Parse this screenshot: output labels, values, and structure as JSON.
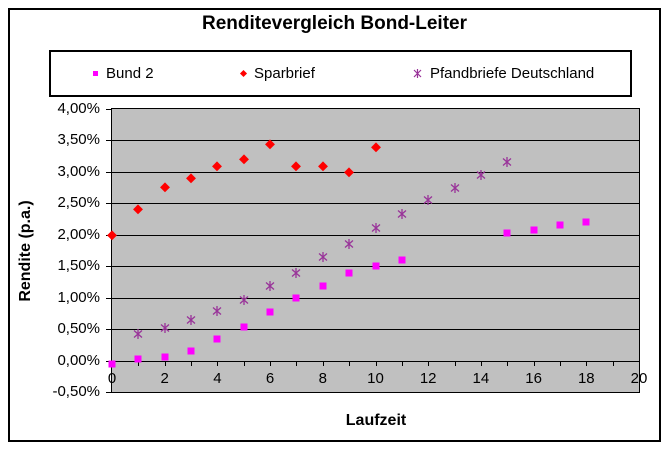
{
  "chart": {
    "title": "Renditevergleich Bond-Leiter",
    "x_axis_title": "Laufzeit",
    "y_axis_title": "Rendite (p.a.)",
    "plot_background": "#C0C0C0",
    "gridline_color": "#000000",
    "legend_position": "top"
  },
  "chart_data": {
    "type": "scatter",
    "title": "Renditevergleich Bond-Leiter",
    "xlabel": "Laufzeit",
    "ylabel": "Rendite (p.a.)",
    "xlim": [
      0,
      20
    ],
    "ylim": [
      -0.5,
      4.0
    ],
    "grid": true,
    "y_ticks": [
      {
        "label": "4,00%",
        "value": 4.0
      },
      {
        "label": "3,50%",
        "value": 3.5
      },
      {
        "label": "3,00%",
        "value": 3.0
      },
      {
        "label": "2,50%",
        "value": 2.5
      },
      {
        "label": "2,00%",
        "value": 2.0
      },
      {
        "label": "1,50%",
        "value": 1.5
      },
      {
        "label": "1,00%",
        "value": 1.0
      },
      {
        "label": "0,50%",
        "value": 0.5
      },
      {
        "label": "0,00%",
        "value": 0.0
      },
      {
        "label": "-0,50%",
        "value": -0.5
      }
    ],
    "x_ticks": {
      "minor_step": 1,
      "labels": [
        {
          "label": "0",
          "value": 0
        },
        {
          "label": "2",
          "value": 2
        },
        {
          "label": "4",
          "value": 4
        },
        {
          "label": "6",
          "value": 6
        },
        {
          "label": "8",
          "value": 8
        },
        {
          "label": "10",
          "value": 10
        },
        {
          "label": "12",
          "value": 12
        },
        {
          "label": "14",
          "value": 14
        },
        {
          "label": "16",
          "value": 16
        },
        {
          "label": "18",
          "value": 18
        },
        {
          "label": "20",
          "value": 20
        }
      ]
    },
    "series": [
      {
        "name": "Bund 2",
        "marker": "square",
        "color": "#FF00FF",
        "points": [
          [
            0,
            -0.05
          ],
          [
            1,
            0.02
          ],
          [
            2,
            0.06
          ],
          [
            3,
            0.15
          ],
          [
            4,
            0.34
          ],
          [
            5,
            0.54
          ],
          [
            6,
            0.78
          ],
          [
            7,
            1.0
          ],
          [
            8,
            1.19
          ],
          [
            9,
            1.39
          ],
          [
            10,
            1.51
          ],
          [
            11,
            1.6
          ],
          [
            15,
            2.03
          ],
          [
            16,
            2.08
          ],
          [
            17,
            2.16
          ],
          [
            18,
            2.21
          ]
        ]
      },
      {
        "name": "Sparbrief",
        "marker": "diamond",
        "color": "#FF0000",
        "points": [
          [
            0,
            2.0
          ],
          [
            1,
            2.41
          ],
          [
            2,
            2.76
          ],
          [
            3,
            2.9
          ],
          [
            4,
            3.1
          ],
          [
            5,
            3.2
          ],
          [
            6,
            3.45
          ],
          [
            7,
            3.1
          ],
          [
            8,
            3.1
          ],
          [
            9,
            3.0
          ],
          [
            10,
            3.4
          ]
        ]
      },
      {
        "name": "Pfandbriefe Deutschland",
        "marker": "star",
        "color": "#993399",
        "points": [
          [
            1,
            0.43
          ],
          [
            2,
            0.52
          ],
          [
            3,
            0.64
          ],
          [
            4,
            0.79
          ],
          [
            5,
            0.97
          ],
          [
            6,
            1.18
          ],
          [
            7,
            1.4
          ],
          [
            8,
            1.64
          ],
          [
            9,
            1.86
          ],
          [
            10,
            2.11
          ],
          [
            11,
            2.33
          ],
          [
            12,
            2.55
          ],
          [
            13,
            2.74
          ],
          [
            14,
            2.95
          ],
          [
            15,
            3.15
          ]
        ]
      }
    ]
  }
}
